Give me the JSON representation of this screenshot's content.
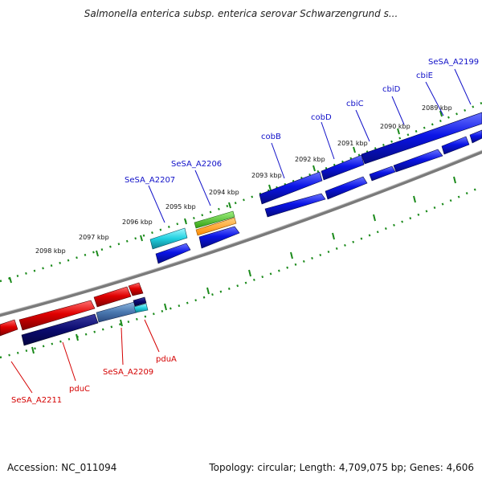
{
  "header": {
    "title": "Salmonella enterica subsp. enterica serovar Schwarzengrund s..."
  },
  "footer": {
    "accession": "Accession: NC_011094",
    "topology": "Topology: circular; Length: 4,709,075 bp; Genes: 4,606"
  },
  "ticks": {
    "k2098": "2098 kbp",
    "k2097": "2097 kbp",
    "k2096": "2096 kbp",
    "k2095": "2095 kbp",
    "k2094": "2094 kbp",
    "k2093": "2093 kbp",
    "k2092": "2092 kbp",
    "k2091": "2091 kbp",
    "k2090": "2090 kbp",
    "k2089": "2089 kbp"
  },
  "genes_forward": {
    "sesa_a2199": "SeSA_A2199",
    "cbie": "cbiE",
    "cbid": "cbiD",
    "cbic": "cbiC",
    "cobd": "cobD",
    "cobb": "cobB",
    "sesa_a2206": "SeSA_A2206",
    "sesa_a2207": "SeSA_A2207"
  },
  "genes_reverse": {
    "pdua": "pduA",
    "sesa_a2209": "SeSA_A2209",
    "pduc": "pduC",
    "sesa_a2211": "SeSA_A2211"
  },
  "colors": {
    "forward_cds": "#0a14e6",
    "reverse_cds": "#e00000",
    "reverse_cog": "#0a0a6e",
    "cyan_feature": "#20d0e0",
    "green_feature": "#40c020",
    "orange_feature": "#ff9a00",
    "backbone": "#808080",
    "tick_green": "#1a8a1a",
    "label_forward": "#1010c8",
    "label_reverse": "#d40000"
  }
}
